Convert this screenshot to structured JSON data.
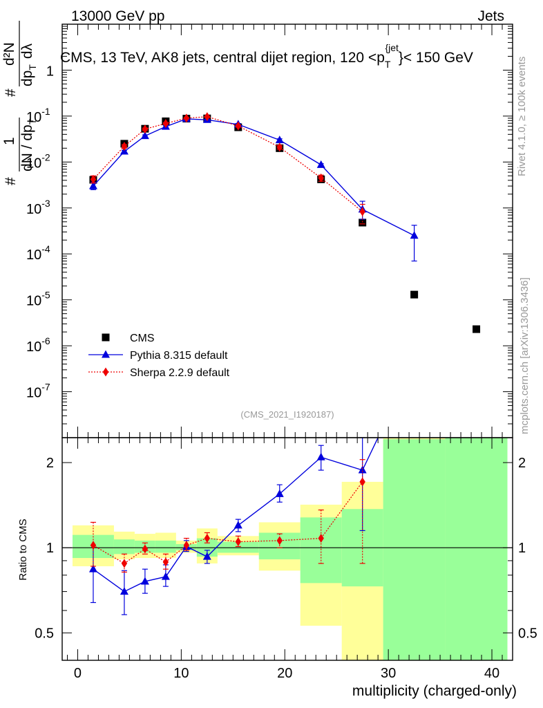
{
  "header": {
    "left": "13000 GeV pp",
    "right": "Jets"
  },
  "side_labels": {
    "rivet": "Rivet 4.1.0, ≥ 100k events",
    "mcplots": "mcplots.cern.ch [arXiv:1306.3436]"
  },
  "chart_data": [
    {
      "type": "scatter",
      "panel": "main",
      "title": "CMS, 13 TeV, AK8 jets, central dijet region, 120 < p_T^{jet} < 150 GeV",
      "title_parts": {
        "pre": "CMS, 13 TeV, AK8 jets, central dijet region, 120 <p",
        "sub": "T",
        "sup": "{jet",
        "post": "}< 150 GeV"
      },
      "ylabel_parts": {
        "one": "1",
        "hash": "#",
        "den": "dN / dp",
        "den_sub": "T",
        "num": "d²N",
        "num_den": "dp",
        "num_den_sub": "T",
        "num_den_tail": "dλ"
      },
      "yscale": "log",
      "ylim": [
        1e-08,
        10
      ],
      "yticks": [
        {
          "value": 1e-07,
          "base": "10",
          "exp": "-7"
        },
        {
          "value": 1e-06,
          "base": "10",
          "exp": "-6"
        },
        {
          "value": 1e-05,
          "base": "10",
          "exp": "-5"
        },
        {
          "value": 0.0001,
          "base": "10",
          "exp": "-4"
        },
        {
          "value": 0.001,
          "base": "10",
          "exp": "-3"
        },
        {
          "value": 0.01,
          "base": "10",
          "exp": "-2"
        },
        {
          "value": 0.1,
          "base": "10",
          "exp": "-1"
        },
        {
          "value": 1,
          "base": "1",
          "exp": ""
        }
      ],
      "xlim": [
        -1.5,
        42
      ],
      "watermark": "(CMS_2021_I1920187)",
      "legend": {
        "position": "bottom-left",
        "entries": [
          "CMS",
          "Pythia 8.315 default",
          "Sherpa 2.2.9 default"
        ]
      },
      "series": [
        {
          "name": "CMS",
          "color": "#000000",
          "marker": "square",
          "line": "none",
          "x": [
            1.5,
            4.5,
            6.5,
            8.5,
            10.5,
            12.5,
            15.5,
            19.5,
            23.5,
            27.5,
            32.5,
            38.5
          ],
          "y": [
            0.0041,
            0.025,
            0.053,
            0.077,
            0.088,
            0.089,
            0.057,
            0.02,
            0.0042,
            0.00048,
            1.3e-05,
            2.3e-06
          ]
        },
        {
          "name": "Pythia 8.315 default",
          "color": "#0000dd",
          "marker": "triangle",
          "line": "solid",
          "x": [
            1.5,
            4.5,
            6.5,
            8.5,
            10.5,
            12.5,
            15.5,
            19.5,
            23.5,
            27.5,
            32.5
          ],
          "y": [
            0.003,
            0.017,
            0.037,
            0.059,
            0.087,
            0.083,
            0.066,
            0.03,
            0.0087,
            0.00093,
            0.00025
          ],
          "err_lo": [
            0.0025,
            0.016,
            0.035,
            0.056,
            0.084,
            0.08,
            0.063,
            0.028,
            0.0082,
            0.00057,
            7e-05
          ],
          "err_hi": [
            0.0036,
            0.018,
            0.039,
            0.062,
            0.09,
            0.086,
            0.069,
            0.032,
            0.0092,
            0.0014,
            0.00042
          ]
        },
        {
          "name": "Sherpa 2.2.9 default",
          "color": "#ee0000",
          "marker": "diamond",
          "line": "dotted",
          "x": [
            1.5,
            4.5,
            6.5,
            8.5,
            10.5,
            12.5,
            15.5,
            19.5,
            23.5,
            27.5
          ],
          "y": [
            0.0042,
            0.022,
            0.052,
            0.069,
            0.09,
            0.097,
            0.061,
            0.021,
            0.0045,
            0.00083
          ],
          "err_lo": [
            0.0035,
            0.02,
            0.049,
            0.066,
            0.087,
            0.094,
            0.058,
            0.019,
            0.0038,
            0.00045
          ],
          "err_hi": [
            0.005,
            0.024,
            0.055,
            0.072,
            0.093,
            0.1,
            0.064,
            0.023,
            0.0052,
            0.0012
          ]
        }
      ]
    },
    {
      "type": "scatter",
      "panel": "ratio",
      "ylabel": "Ratio to CMS",
      "xlabel": "multiplicity (charged-only)",
      "yscale": "log",
      "ylim": [
        0.4,
        2.45
      ],
      "yticks": [
        0.5,
        1,
        2
      ],
      "ytick_labels": [
        "0.5",
        "1",
        "2"
      ],
      "xlim": [
        -1.5,
        42
      ],
      "xticks": [
        0,
        10,
        20,
        30,
        40
      ],
      "xtick_labels": [
        "0",
        "10",
        "20",
        "30",
        "40"
      ],
      "reference_line": 1,
      "bands": [
        {
          "x0": -0.5,
          "x1": 3.5,
          "yellow": [
            0.86,
            1.2
          ],
          "green": [
            0.92,
            1.11
          ]
        },
        {
          "x0": 3.5,
          "x1": 5.5,
          "yellow": [
            0.91,
            1.14
          ],
          "green": [
            0.95,
            1.07
          ]
        },
        {
          "x0": 5.5,
          "x1": 7.5,
          "yellow": [
            0.92,
            1.12
          ],
          "green": [
            0.96,
            1.06
          ]
        },
        {
          "x0": 7.5,
          "x1": 9.5,
          "yellow": [
            0.92,
            1.13
          ],
          "green": [
            0.96,
            1.06
          ]
        },
        {
          "x0": 9.5,
          "x1": 11.5,
          "yellow": [
            0.96,
            1.06
          ],
          "green": [
            0.98,
            1.03
          ]
        },
        {
          "x0": 11.5,
          "x1": 13.5,
          "yellow": [
            0.88,
            1.17
          ],
          "green": [
            0.93,
            1.08
          ]
        },
        {
          "x0": 13.5,
          "x1": 17.5,
          "yellow": [
            0.94,
            1.1
          ],
          "green": [
            0.96,
            1.05
          ]
        },
        {
          "x0": 17.5,
          "x1": 21.5,
          "yellow": [
            0.83,
            1.23
          ],
          "green": [
            0.91,
            1.13
          ]
        },
        {
          "x0": 21.5,
          "x1": 25.5,
          "yellow": [
            0.53,
            1.42
          ],
          "green": [
            0.75,
            1.28
          ]
        },
        {
          "x0": 25.5,
          "x1": 29.5,
          "yellow": [
            0.3,
            1.71
          ],
          "green": [
            0.73,
            1.37
          ]
        },
        {
          "x0": 29.5,
          "x1": 35.5,
          "yellow": [
            0.3,
            2.5
          ],
          "green": [
            0.3,
            2.42
          ]
        },
        {
          "x0": 35.5,
          "x1": 41.5,
          "yellow": [
            0.3,
            2.5
          ],
          "green": [
            0.3,
            2.5
          ]
        }
      ],
      "series": [
        {
          "name": "Pythia 8.315 default",
          "color": "#0000dd",
          "marker": "triangle",
          "line": "solid",
          "x": [
            1.5,
            4.5,
            6.5,
            8.5,
            10.5,
            12.5,
            15.5,
            19.5,
            23.5,
            27.5,
            29.0
          ],
          "y": [
            0.84,
            0.7,
            0.76,
            0.79,
            1.01,
            0.93,
            1.2,
            1.55,
            2.09,
            1.88,
            2.5
          ],
          "err_lo": [
            0.64,
            0.58,
            0.69,
            0.73,
            0.97,
            0.88,
            1.14,
            1.45,
            1.88,
            1.15,
            null
          ],
          "err_hi": [
            1.02,
            0.83,
            0.84,
            0.87,
            1.06,
            0.98,
            1.26,
            1.67,
            2.3,
            2.5,
            null
          ]
        },
        {
          "name": "Sherpa 2.2.9 default",
          "color": "#ee0000",
          "marker": "diamond",
          "line": "dotted",
          "x": [
            1.5,
            4.5,
            6.5,
            8.5,
            10.5,
            12.5,
            15.5,
            19.5,
            23.5,
            27.5
          ],
          "y": [
            1.02,
            0.88,
            0.99,
            0.89,
            1.02,
            1.08,
            1.05,
            1.06,
            1.08,
            1.71
          ],
          "err_lo": [
            0.86,
            0.82,
            0.95,
            0.84,
            0.98,
            1.04,
            1.01,
            1.0,
            0.88,
            0.88
          ],
          "err_hi": [
            1.23,
            0.95,
            1.04,
            0.95,
            1.08,
            1.13,
            1.1,
            1.12,
            1.36,
            2.05
          ]
        }
      ]
    }
  ]
}
